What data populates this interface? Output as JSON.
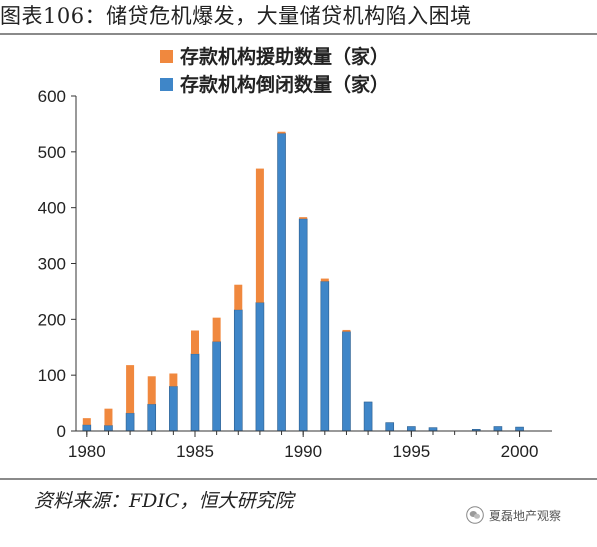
{
  "page_title": "图表106：储贷危机爆发，大量储贷机构陷入困境",
  "source_note": "资料来源：FDIC，恒大研究院",
  "watermark": "夏磊地产观察",
  "watermark_icon": "wechat-icon",
  "colors": {
    "assisted": "#f0883e",
    "closed": "#3f86c8",
    "closed_edge": "#2b5d8c",
    "axis": "#333333"
  },
  "chart_data": {
    "type": "bar",
    "stacked": true,
    "x": [
      1980,
      1981,
      1982,
      1983,
      1984,
      1985,
      1986,
      1987,
      1988,
      1989,
      1990,
      1991,
      1992,
      1993,
      1994,
      1995,
      1996,
      1997,
      1998,
      1999,
      2000
    ],
    "x_ticks": [
      "1980",
      "1985",
      "1990",
      "1995",
      "2000"
    ],
    "y_ticks": [
      "0",
      "100",
      "200",
      "300",
      "400",
      "500",
      "600"
    ],
    "ylim": [
      0,
      600
    ],
    "grid": false,
    "legend_position": "top-center",
    "series": [
      {
        "name": "存款机构倒闭数量（家）",
        "color": "#3f86c8",
        "values": [
          11,
          10,
          32,
          48,
          80,
          138,
          160,
          217,
          230,
          533,
          380,
          268,
          178,
          52,
          15,
          8,
          6,
          0,
          3,
          8,
          7
        ]
      },
      {
        "name": "存款机构援助数量（家）",
        "color": "#f0883e",
        "values": [
          12,
          30,
          86,
          50,
          23,
          42,
          43,
          45,
          240,
          3,
          3,
          5,
          3,
          0,
          0,
          0,
          0,
          0,
          0,
          0,
          0
        ]
      }
    ]
  }
}
